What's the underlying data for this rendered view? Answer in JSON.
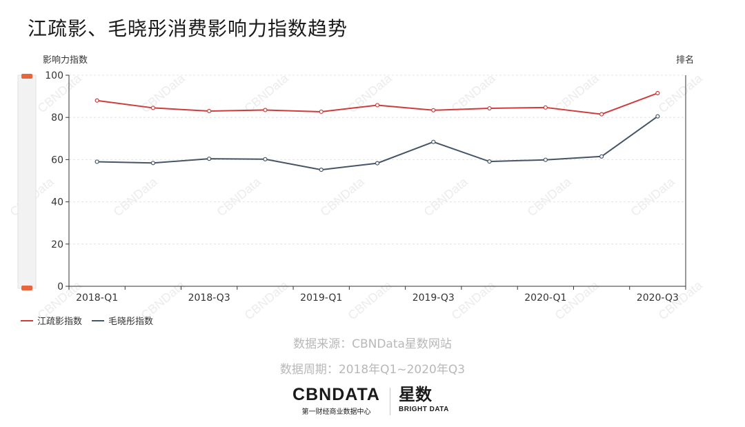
{
  "title": "江疏影、毛晓彤消费影响力指数趋势",
  "chart_data": {
    "type": "line",
    "title": "江疏影、毛晓彤消费影响力指数趋势",
    "ylabel": "影响力指数",
    "y2label": "排名",
    "ylim": [
      0,
      100
    ],
    "yticks": [
      0,
      20,
      40,
      60,
      80,
      100
    ],
    "x": [
      "2018-Q1",
      "2018-Q2",
      "2018-Q3",
      "2018-Q4",
      "2019-Q1",
      "2019-Q2",
      "2019-Q3",
      "2019-Q4",
      "2020-Q1",
      "2020-Q2",
      "2020-Q3"
    ],
    "x_tick_labels": [
      "2018-Q1",
      "2018-Q3",
      "2019-Q1",
      "2019-Q3",
      "2020-Q1",
      "2020-Q3"
    ],
    "series": [
      {
        "name": "江疏影指数",
        "color": "#d03a3a",
        "values": [
          88,
          84.5,
          83,
          83.5,
          82.7,
          85.8,
          83.4,
          84.3,
          84.7,
          81.5,
          91.5
        ]
      },
      {
        "name": "毛晓彤指数",
        "color": "#455466",
        "values": [
          59,
          58.4,
          60.4,
          60.2,
          55.2,
          58.3,
          68.4,
          59.1,
          59.9,
          61.5,
          80.5
        ]
      }
    ],
    "grid": true,
    "legend_position": "bottom-left"
  },
  "watermark": "CBNData",
  "source_text": "数据来源：CBNData星数网站",
  "period_text": "数据周期：2018年Q1~2020年Q3",
  "logo": {
    "cbn_text": "CBNDATA",
    "cbn_sub": "第一财经商业数据中心",
    "xs_text": "星数",
    "bd_text": "BRIGHT DATA"
  }
}
